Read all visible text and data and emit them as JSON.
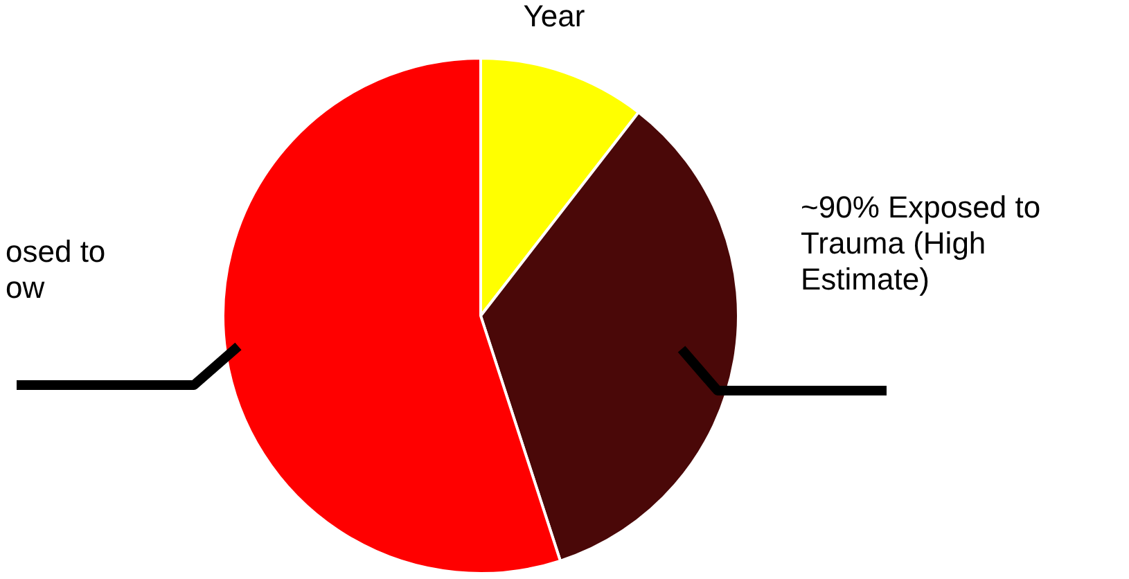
{
  "chart_data": {
    "type": "pie",
    "categories": [
      "Year",
      "~90% Exposed to Trauma (High Estimate)",
      "osed to ow"
    ],
    "values": [
      10.5,
      34.5,
      55
    ],
    "colors": [
      "#ffff00",
      "#4a0808",
      "#ff0000"
    ]
  }
}
